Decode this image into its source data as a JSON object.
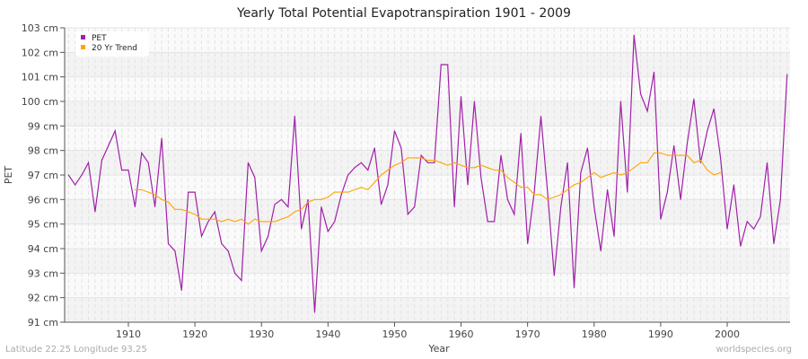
{
  "chart_data": {
    "type": "line",
    "title": "Yearly Total Potential Evapotranspiration 1901 - 2009",
    "xlabel": "Year",
    "ylabel": "PET",
    "ylim": [
      91,
      103
    ],
    "y_unit": "cm",
    "y_ticks": [
      "91 cm",
      "92 cm",
      "93 cm",
      "94 cm",
      "95 cm",
      "96 cm",
      "97 cm",
      "98 cm",
      "99 cm",
      "100 cm",
      "101 cm",
      "102 cm",
      "103 cm"
    ],
    "x_ticks": [
      "1910",
      "1920",
      "1930",
      "1940",
      "1950",
      "1960",
      "1970",
      "1980",
      "1990",
      "2000"
    ],
    "grid": true,
    "legend": "top-left",
    "series": [
      {
        "name": "PET",
        "color": "#a020a8",
        "start_year": 1901,
        "values": [
          97.0,
          96.6,
          97.0,
          97.5,
          95.5,
          97.6,
          98.2,
          98.8,
          97.2,
          97.2,
          95.7,
          97.9,
          97.5,
          95.7,
          98.5,
          94.2,
          93.9,
          92.3,
          96.3,
          96.3,
          94.5,
          95.1,
          95.5,
          94.2,
          93.9,
          93.0,
          92.7,
          97.5,
          96.9,
          93.9,
          94.5,
          95.8,
          96.0,
          95.7,
          99.4,
          94.8,
          96.0,
          91.4,
          95.7,
          94.7,
          95.1,
          96.2,
          97.0,
          97.3,
          97.5,
          97.2,
          98.1,
          95.8,
          96.6,
          98.8,
          98.1,
          95.4,
          95.7,
          97.8,
          97.5,
          97.5,
          101.5,
          101.5,
          95.7,
          100.2,
          96.6,
          100.0,
          96.9,
          95.1,
          95.1,
          97.8,
          96.0,
          95.4,
          98.7,
          94.2,
          96.3,
          99.4,
          96.3,
          92.9,
          95.7,
          97.5,
          92.4,
          97.1,
          98.1,
          95.7,
          93.9,
          96.4,
          94.5,
          100.0,
          96.3,
          102.7,
          100.3,
          99.6,
          101.2,
          95.2,
          96.3,
          98.2,
          96.0,
          98.3,
          100.1,
          97.5,
          98.8,
          99.7,
          97.7,
          94.8,
          96.6,
          94.1,
          95.1,
          94.8,
          95.3,
          97.5,
          94.2,
          96.0,
          101.1
        ]
      },
      {
        "name": "20 Yr Trend",
        "color": "#ffa500",
        "start_year": 1911,
        "values": [
          96.4,
          96.4,
          96.3,
          96.2,
          96.0,
          95.9,
          95.6,
          95.6,
          95.5,
          95.4,
          95.2,
          95.2,
          95.2,
          95.1,
          95.2,
          95.1,
          95.2,
          95.0,
          95.2,
          95.1,
          95.1,
          95.1,
          95.2,
          95.3,
          95.5,
          95.6,
          95.9,
          96.0,
          96.0,
          96.1,
          96.3,
          96.3,
          96.3,
          96.4,
          96.5,
          96.4,
          96.7,
          97.0,
          97.2,
          97.4,
          97.5,
          97.7,
          97.7,
          97.7,
          97.6,
          97.6,
          97.5,
          97.4,
          97.5,
          97.4,
          97.3,
          97.3,
          97.4,
          97.3,
          97.2,
          97.2,
          96.9,
          96.7,
          96.5,
          96.5,
          96.2,
          96.2,
          96.0,
          96.1,
          96.2,
          96.4,
          96.6,
          96.7,
          96.9,
          97.1,
          96.9,
          97.0,
          97.1,
          97.0,
          97.1,
          97.3,
          97.5,
          97.5,
          97.9,
          97.9,
          97.8,
          97.8,
          97.8,
          97.8,
          97.5,
          97.6,
          97.2,
          97.0,
          97.1
        ]
      }
    ]
  },
  "footer": {
    "location": "Latitude 22.25 Longitude 93.25",
    "site": "worldspecies.org"
  }
}
